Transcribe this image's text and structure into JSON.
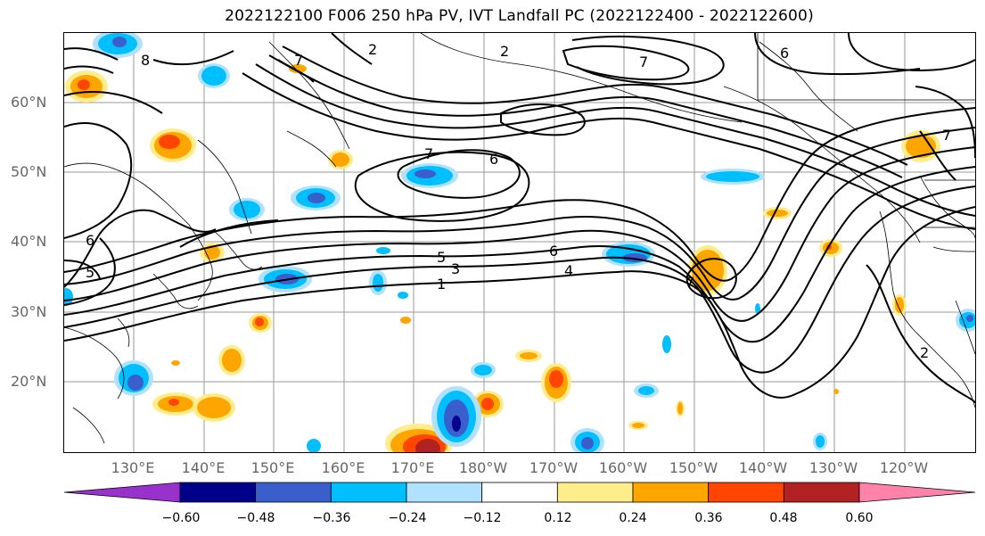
{
  "title": "2022122100 F006 250 hPa PV, IVT Landfall PC (2022122400 - 2022122600)",
  "map": {
    "lat_labels": [
      "60°N",
      "50°N",
      "40°N",
      "30°N",
      "20°N"
    ],
    "lon_labels": [
      "130°E",
      "140°E",
      "150°E",
      "160°E",
      "170°E",
      "180°W",
      "170°W",
      "160°W",
      "150°W",
      "140°W",
      "130°W",
      "120°W"
    ],
    "contour_labels": [
      "1",
      "2",
      "3",
      "4",
      "5",
      "6",
      "7",
      "8"
    ]
  },
  "colorbar": {
    "colors": [
      "#9932CC",
      "#00008B",
      "#3A5FCD",
      "#00BFFF",
      "#B0E2FF",
      "#FFFFFF",
      "#FFEC8B",
      "#FFA500",
      "#FF4500",
      "#B22222",
      "#FF82AB"
    ],
    "ticks": [
      "−0.60",
      "−0.48",
      "−0.36",
      "−0.24",
      "−0.12",
      "0.12",
      "0.24",
      "0.36",
      "0.48",
      "0.60"
    ]
  }
}
